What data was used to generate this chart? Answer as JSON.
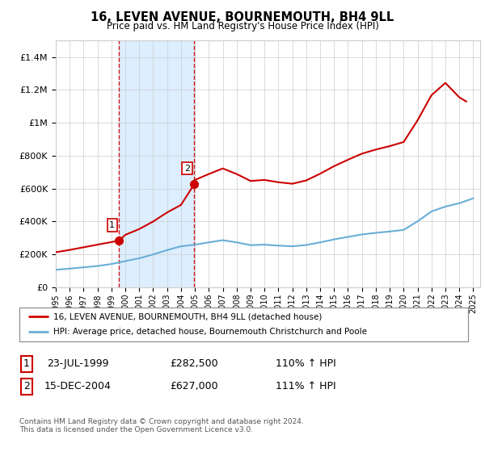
{
  "title": "16, LEVEN AVENUE, BOURNEMOUTH, BH4 9LL",
  "subtitle": "Price paid vs. HM Land Registry's House Price Index (HPI)",
  "ylabel_ticks": [
    "£0",
    "£200K",
    "£400K",
    "£600K",
    "£800K",
    "£1M",
    "£1.2M",
    "£1.4M"
  ],
  "ytick_values": [
    0,
    200000,
    400000,
    600000,
    800000,
    1000000,
    1200000,
    1400000
  ],
  "ylim": [
    0,
    1500000
  ],
  "xlim_start": 1995.0,
  "xlim_end": 2025.5,
  "sale1_x": 1999.554,
  "sale1_y": 282500,
  "sale2_x": 2004.958,
  "sale2_y": 627000,
  "vline1_x": 1999.554,
  "vline2_x": 2004.958,
  "legend_line1": "16, LEVEN AVENUE, BOURNEMOUTH, BH4 9LL (detached house)",
  "legend_line2": "HPI: Average price, detached house, Bournemouth Christchurch and Poole",
  "table_row1": [
    "1",
    "23-JUL-1999",
    "£282,500",
    "110% ↑ HPI"
  ],
  "table_row2": [
    "2",
    "15-DEC-2004",
    "£627,000",
    "111% ↑ HPI"
  ],
  "footer": "Contains HM Land Registry data © Crown copyright and database right 2024.\nThis data is licensed under the Open Government Licence v3.0.",
  "red_color": "#cc0000",
  "blue_color": "#6aaed6",
  "shade_color": "#ddeeff",
  "bg_color": "#ffffff",
  "grid_color": "#cccccc",
  "hpi_x": [
    1995,
    1996,
    1997,
    1998,
    1999,
    2000,
    2001,
    2002,
    2003,
    2004,
    2005,
    2006,
    2007,
    2008,
    2009,
    2010,
    2011,
    2012,
    2013,
    2014,
    2015,
    2016,
    2017,
    2018,
    2019,
    2020,
    2021,
    2022,
    2023,
    2024,
    2025
  ],
  "hpi_y": [
    105000,
    112000,
    120000,
    128000,
    140000,
    158000,
    175000,
    198000,
    225000,
    248000,
    258000,
    272000,
    285000,
    272000,
    255000,
    258000,
    252000,
    248000,
    256000,
    272000,
    290000,
    305000,
    320000,
    330000,
    338000,
    348000,
    400000,
    460000,
    490000,
    510000,
    540000
  ],
  "red_x": [
    1995,
    1996,
    1997,
    1998,
    1999.554,
    2000,
    2001,
    2002,
    2003,
    2004,
    2004.958,
    2005,
    2006,
    2007,
    2008,
    2009,
    2010,
    2011,
    2012,
    2013,
    2014,
    2015,
    2016,
    2017,
    2018,
    2019,
    2020,
    2021,
    2022,
    2023,
    2024,
    2024.5
  ],
  "red_y": [
    212000,
    226000,
    242000,
    258000,
    282500,
    318000,
    353000,
    399000,
    454000,
    500000,
    627000,
    652000,
    688000,
    722000,
    688000,
    646000,
    652000,
    638000,
    629000,
    649000,
    690000,
    736000,
    775000,
    812000,
    837000,
    858000,
    883000,
    1015000,
    1168000,
    1243000,
    1155000,
    1130000
  ]
}
